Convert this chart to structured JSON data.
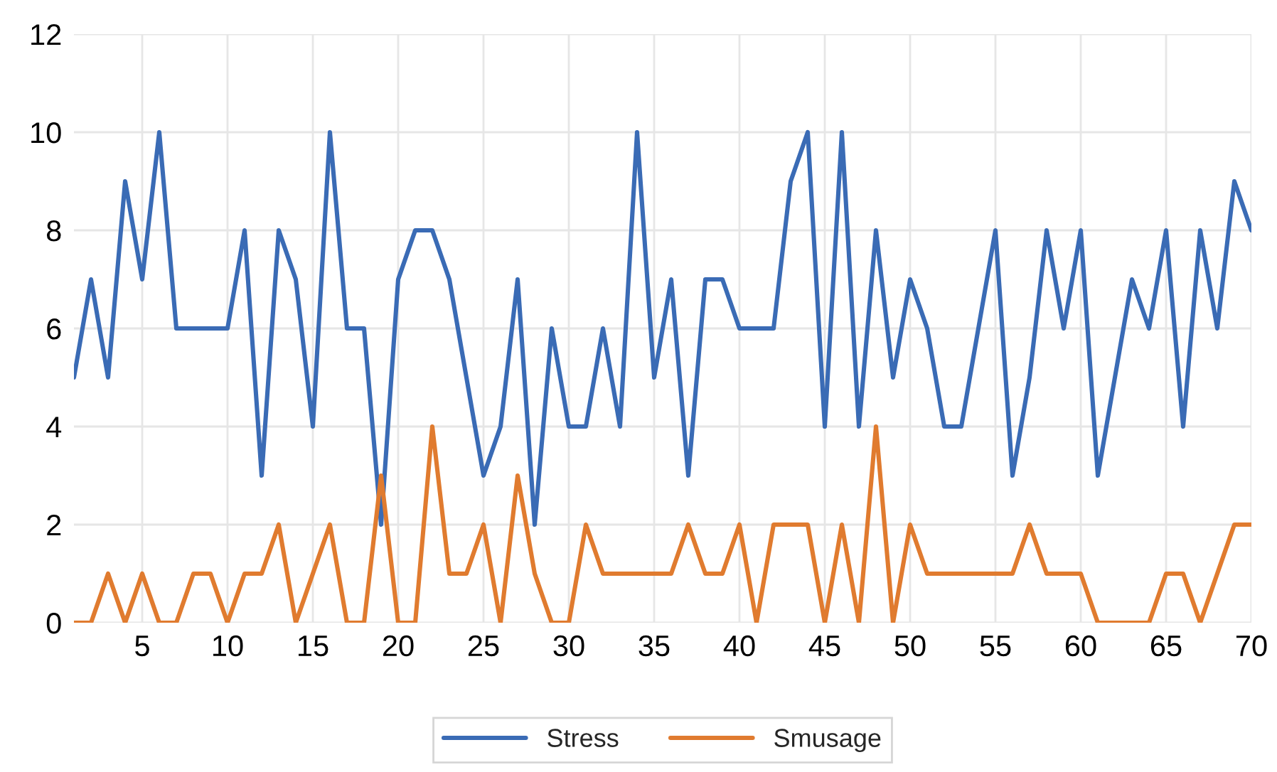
{
  "chart_data": {
    "type": "line",
    "x": [
      1,
      2,
      3,
      4,
      5,
      6,
      7,
      8,
      9,
      10,
      11,
      12,
      13,
      14,
      15,
      16,
      17,
      18,
      19,
      20,
      21,
      22,
      23,
      24,
      25,
      26,
      27,
      28,
      29,
      30,
      31,
      32,
      33,
      34,
      35,
      36,
      37,
      38,
      39,
      40,
      41,
      42,
      43,
      44,
      45,
      46,
      47,
      48,
      49,
      50,
      51,
      52,
      53,
      54,
      55,
      56,
      57,
      58,
      59,
      60,
      61,
      62,
      63,
      64,
      65,
      66,
      67,
      68,
      69,
      70
    ],
    "series": [
      {
        "name": "Stress",
        "color": "#3a6bb5",
        "values": [
          5,
          7,
          5,
          9,
          7,
          10,
          6,
          6,
          6,
          6,
          8,
          3,
          8,
          7,
          4,
          10,
          6,
          6,
          2,
          7,
          8,
          8,
          7,
          5,
          3,
          4,
          7,
          2,
          6,
          4,
          4,
          6,
          4,
          10,
          5,
          7,
          3,
          7,
          7,
          6,
          6,
          6,
          9,
          10,
          4,
          10,
          4,
          8,
          5,
          7,
          6,
          4,
          4,
          6,
          8,
          3,
          5,
          8,
          6,
          8,
          3,
          5,
          7,
          6,
          8,
          4,
          8,
          6,
          9,
          8
        ]
      },
      {
        "name": "Smusage",
        "color": "#e07b2f",
        "values": [
          0,
          0,
          1,
          0,
          1,
          0,
          0,
          1,
          1,
          0,
          1,
          1,
          2,
          0,
          1,
          2,
          0,
          0,
          3,
          0,
          0,
          4,
          1,
          1,
          2,
          0,
          3,
          1,
          0,
          0,
          2,
          1,
          1,
          1,
          1,
          1,
          2,
          1,
          1,
          2,
          0,
          2,
          2,
          2,
          0,
          2,
          0,
          4,
          0,
          2,
          1,
          1,
          1,
          1,
          1,
          1,
          2,
          1,
          1,
          1,
          0,
          0,
          0,
          0,
          1,
          1,
          0,
          1,
          2,
          2
        ]
      }
    ],
    "xlim": [
      1,
      70
    ],
    "xticks": [
      5,
      10,
      15,
      20,
      25,
      30,
      35,
      40,
      45,
      50,
      55,
      60,
      65,
      70
    ],
    "ylim": [
      0,
      12
    ],
    "yticks": [
      0,
      2,
      4,
      6,
      8,
      10,
      12
    ],
    "grid": true,
    "legend": "bottom",
    "marker": "none",
    "line_style": "solid"
  }
}
